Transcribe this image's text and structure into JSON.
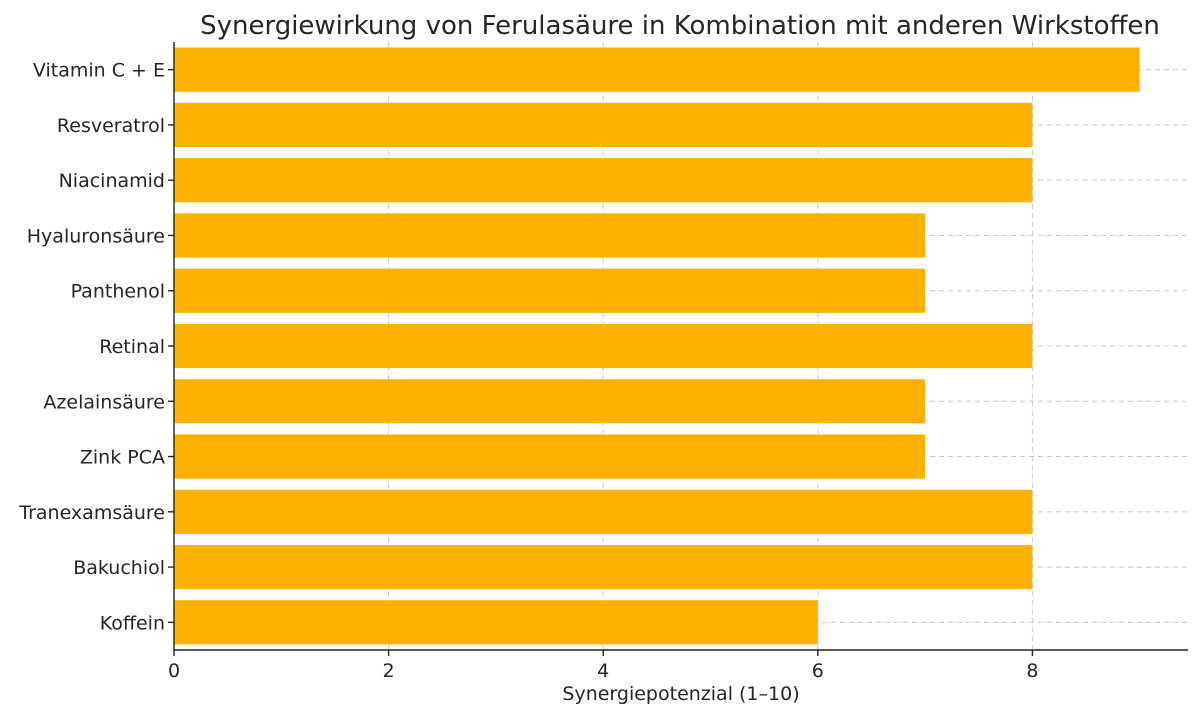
{
  "chart_data": {
    "type": "bar",
    "orientation": "horizontal",
    "title": "Synergiewirkung von Ferulasäure in Kombination mit anderen Wirkstoffen",
    "xlabel": "Synergiepotenzial (1–10)",
    "ylabel": "",
    "categories": [
      "Vitamin C + E",
      "Resveratrol",
      "Niacinamid",
      "Hyaluronsäure",
      "Panthenol",
      "Retinal",
      "Azelainsäure",
      "Zink PCA",
      "Tranexamsäure",
      "Bakuchiol",
      "Koffein"
    ],
    "values": [
      9,
      8,
      8,
      7,
      7,
      8,
      7,
      7,
      8,
      8,
      6
    ],
    "xlim": [
      0,
      9.45
    ],
    "xticks": [
      0,
      2,
      4,
      6,
      8
    ],
    "grid": true,
    "bar_color": "#FFB000"
  }
}
